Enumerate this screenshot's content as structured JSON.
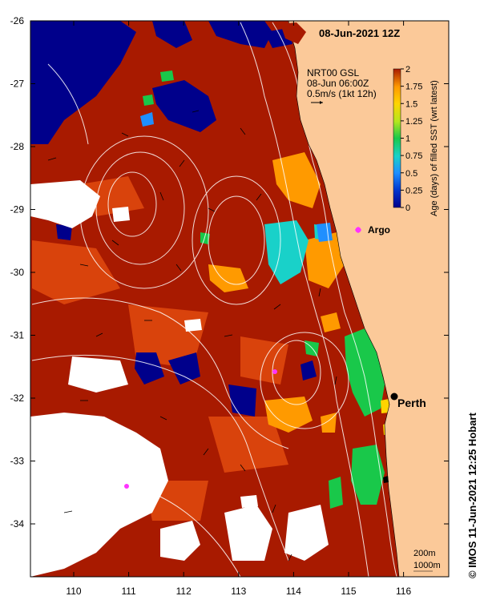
{
  "title": "08-Jun-2021 12Z",
  "info": {
    "line1": "NRT00 GSL",
    "line2": "08-Jun 06:00Z",
    "line3": "0.5m/s (1kt 12h)"
  },
  "colorbar": {
    "label": "Age (days) of filled SST (wrt latest)",
    "ticks": [
      "0",
      "0.25",
      "0.5",
      "0.75",
      "1",
      "1.25",
      "1.5",
      "1.75",
      "2"
    ],
    "colors": [
      "#00008b",
      "#0033cc",
      "#1f8fff",
      "#19d1c9",
      "#19c84a",
      "#b4e61e",
      "#ffd400",
      "#ff9a00",
      "#e0400a",
      "#a81a00"
    ]
  },
  "axes": {
    "lat_labels": [
      "-26",
      "-27",
      "-28",
      "-29",
      "-30",
      "-31",
      "-32",
      "-33",
      "-34"
    ],
    "lon_labels": [
      "110",
      "111",
      "112",
      "113",
      "114",
      "115",
      "116"
    ]
  },
  "places": {
    "perth": "Perth",
    "argo": "Argo"
  },
  "contour_legend": {
    "line1": "200m",
    "line2": "1000m"
  },
  "credit": "©  IMOS 11-Jun-2021 12:25 Hobart",
  "colors": {
    "land": "#fbc999",
    "sst_main": "#a81a00",
    "sst_old": "#d9430c",
    "argo_marker": "#ff33ff",
    "contour": "#ffffff"
  }
}
